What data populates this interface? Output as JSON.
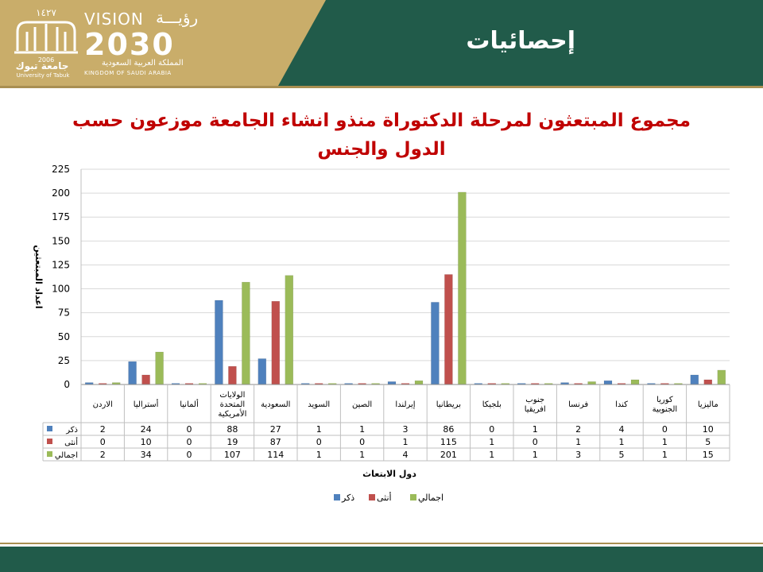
{
  "header": {
    "page_title": "إحصائيات",
    "university_name_ar": "جامعة تبوك",
    "university_name_en": "University of Tabuk",
    "university_year_hijri": "١٤٢٧",
    "university_year": "2006",
    "vision_word": "VISION",
    "vision_word_ar": "رؤيـــة",
    "vision_year": "2030",
    "kingdom_ar": "المملكة العربية السعودية",
    "kingdom_en": "KINGDOM OF SAUDI ARABIA"
  },
  "colors": {
    "green": "#215b4a",
    "gold": "#c9ad6a",
    "title_red": "#c00000",
    "series_male": "#4f81bd",
    "series_female": "#c0504d",
    "series_total": "#9bbb59"
  },
  "chart_data": {
    "type": "bar",
    "title": "مجموع المبتعثون لمرحلة الدكتوراة منذو انشاء الجامعة موزعون حسب الدول والجنس",
    "xlabel": "دول الابتعاث",
    "ylabel": "اعداد المبتعثين",
    "ylim": [
      0,
      225
    ],
    "yticks": [
      0,
      25,
      50,
      75,
      100,
      125,
      150,
      175,
      200,
      225
    ],
    "grid": true,
    "legend_position": "bottom",
    "categories": [
      "الاردن",
      "أستراليا",
      "ألمانيا",
      "الولايات المتحدة الأمريكية",
      "السعودية",
      "السويد",
      "الصين",
      "إيرلندا",
      "بريطانيا",
      "بلجيكا",
      "جنوب افريقيا",
      "فرنسا",
      "كندا",
      "كوريا الجنوبية",
      "ماليزيا"
    ],
    "series": [
      {
        "name": "ذكر",
        "values": [
          2,
          24,
          0,
          88,
          27,
          1,
          1,
          3,
          86,
          0,
          1,
          2,
          4,
          0,
          10
        ]
      },
      {
        "name": "أنثى",
        "values": [
          0,
          10,
          0,
          19,
          87,
          0,
          0,
          1,
          115,
          1,
          0,
          1,
          1,
          1,
          5
        ]
      },
      {
        "name": "اجمالي",
        "values": [
          2,
          34,
          0,
          107,
          114,
          1,
          1,
          4,
          201,
          1,
          1,
          3,
          5,
          1,
          15
        ]
      }
    ]
  }
}
